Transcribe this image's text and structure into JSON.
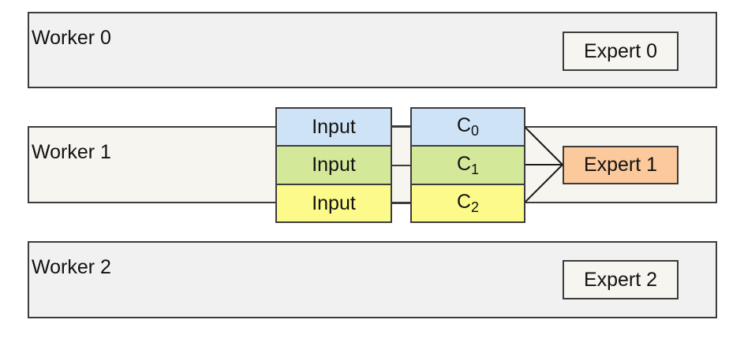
{
  "workers": [
    {
      "label": "Worker 0",
      "expert": "Expert 0"
    },
    {
      "label": "Worker 1",
      "expert": "Expert 1"
    },
    {
      "label": "Worker 2",
      "expert": "Expert 2"
    }
  ],
  "inputs": [
    "Input",
    "Input",
    "Input"
  ],
  "chunks": [
    {
      "letter": "C",
      "sub": "0"
    },
    {
      "letter": "C",
      "sub": "1"
    },
    {
      "letter": "C",
      "sub": "2"
    }
  ],
  "colors": {
    "border": "#3c3c3c",
    "worker_bg": "#f1f1f1",
    "worker_active_bg": "#f7f5ef",
    "expert_active_bg": "#fbc99b",
    "row_0": "#cfe3f7",
    "row_1": "#d4e89a",
    "row_2": "#fbfa8a"
  }
}
